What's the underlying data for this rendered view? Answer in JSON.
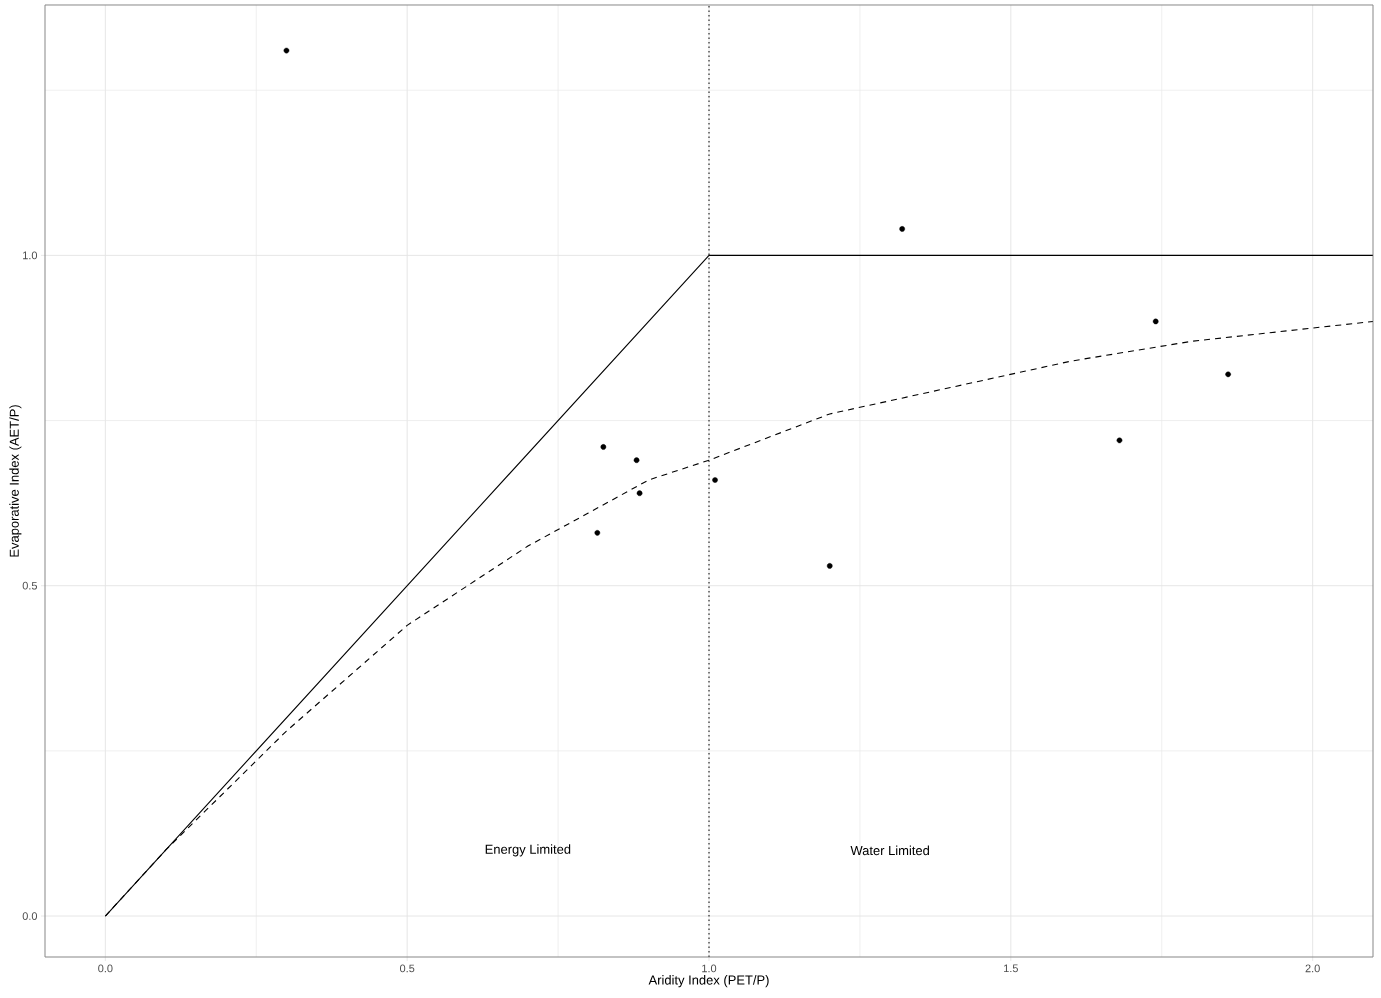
{
  "chart_data": {
    "type": "scatter",
    "xlabel": "Aridity Index (PET/P)",
    "ylabel": "Evaporative Index (AET/P)",
    "xlim": [
      -0.1,
      2.1
    ],
    "ylim": [
      -0.062,
      1.379
    ],
    "xticks": [
      {
        "value": 0,
        "label": "0.0"
      },
      {
        "value": 0.25,
        "label": null
      },
      {
        "value": 0.5,
        "label": "0.5"
      },
      {
        "value": 0.75,
        "label": null
      },
      {
        "value": 1,
        "label": "1.0"
      },
      {
        "value": 1.25,
        "label": null
      },
      {
        "value": 1.5,
        "label": "1.5"
      },
      {
        "value": 1.75,
        "label": null
      },
      {
        "value": 2,
        "label": "2.0"
      }
    ],
    "yticks": [
      {
        "value": 0,
        "label": "0.0"
      },
      {
        "value": 0.25,
        "label": null
      },
      {
        "value": 0.5,
        "label": "0.5"
      },
      {
        "value": 0.75,
        "label": null
      },
      {
        "value": 1,
        "label": "1.0"
      },
      {
        "value": 1.25,
        "label": null
      }
    ],
    "grid": true,
    "series": [
      {
        "type": "line",
        "color": "#000000",
        "line_style": "solid",
        "marker": "none",
        "x": [
          0,
          1,
          2.1
        ],
        "values": [
          0,
          1,
          1
        ]
      },
      {
        "type": "line",
        "color": "#000000",
        "line_style": "dashed",
        "marker": "none",
        "x": [
          0,
          0.1,
          0.2,
          0.3,
          0.4,
          0.5,
          0.6,
          0.7,
          0.8,
          0.9,
          1.0,
          1.2,
          1.4,
          1.6,
          1.8,
          2.0,
          2.1
        ],
        "values": [
          0,
          0.1,
          0.19,
          0.28,
          0.36,
          0.44,
          0.5,
          0.56,
          0.61,
          0.66,
          0.69,
          0.76,
          0.8,
          0.84,
          0.87,
          0.89,
          0.9
        ]
      },
      {
        "color": "#000000",
        "x": [
          0.3,
          1.32,
          1.74,
          1.86,
          1.68,
          0.825,
          0.88,
          0.885,
          1.01,
          0.815,
          1.2
        ],
        "values": [
          1.31,
          1.04,
          0.9,
          0.82,
          0.72,
          0.71,
          0.69,
          0.64,
          0.66,
          0.58,
          0.53
        ]
      }
    ],
    "ref_lines": [
      {
        "axis": "x",
        "value": 1,
        "line_style": "dotted",
        "color": "#000000"
      }
    ],
    "annotations": [
      "Energy Limited",
      "Water Limited"
    ]
  }
}
